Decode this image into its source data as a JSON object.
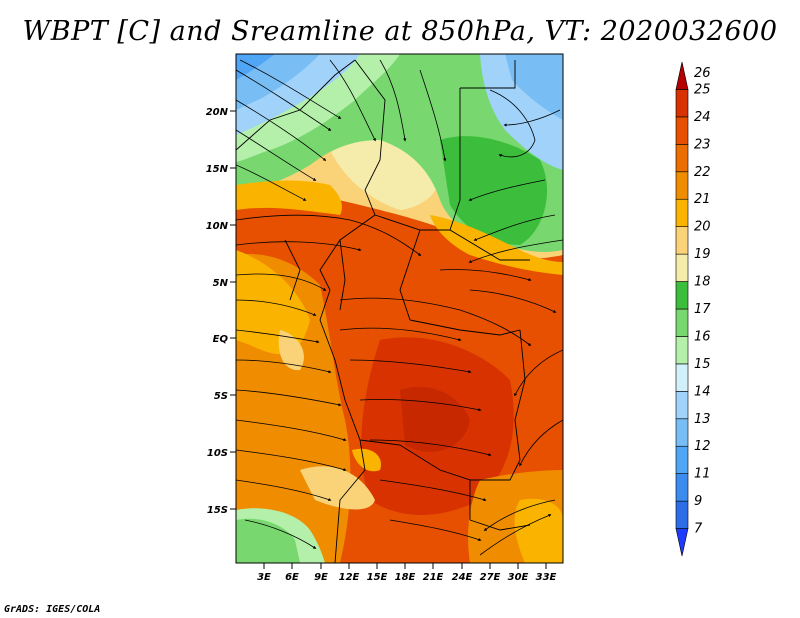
{
  "title": "WBPT [C] and Sreamline at 850hPa, VT: 2020032600",
  "credit": "GrADS: IGES/COLA",
  "axes": {
    "lat_labels": [
      "20N",
      "15N",
      "10N",
      "5N",
      "EQ",
      "5S",
      "10S",
      "15S"
    ],
    "lon_labels": [
      "3E",
      "6E",
      "9E",
      "12E",
      "15E",
      "18E",
      "21E",
      "24E",
      "27E",
      "30E",
      "33E"
    ]
  },
  "colorbar": {
    "labels": [
      "7",
      "9",
      "11",
      "12",
      "13",
      "14",
      "15",
      "16",
      "17",
      "18",
      "19",
      "20",
      "21",
      "22",
      "23",
      "24",
      "25",
      "26"
    ],
    "colors": [
      "#1e3cff",
      "#2d6ee6",
      "#3c8cf0",
      "#50a5f5",
      "#78bef5",
      "#a0d2fa",
      "#d2f0fa",
      "#b4f0aa",
      "#78d76e",
      "#3cbe3c",
      "#f5ebaa",
      "#fad278",
      "#fab400",
      "#f08c00",
      "#eb6e00",
      "#e65000",
      "#d73200",
      "#b40000"
    ]
  },
  "chart_data": {
    "type": "heatmap",
    "title": "WBPT [C] and Sreamline at 850hPa, VT: 2020032600",
    "variable": "WBPT [C]",
    "level": "850hPa",
    "valid_time": "2020032600",
    "lon_range": [
      0,
      34.5
    ],
    "lat_range": [
      -19.5,
      24.5
    ],
    "scale_levels": [
      7,
      9,
      11,
      12,
      13,
      14,
      15,
      16,
      17,
      18,
      19,
      20,
      21,
      22,
      23,
      24,
      25,
      26
    ],
    "regions": [
      {
        "area": "northwest corner",
        "wbpt_approx": 13
      },
      {
        "area": "north central",
        "wbpt_approx": 17
      },
      {
        "area": "northeast",
        "wbpt_approx": 16
      },
      {
        "area": "south of Sahara 12N-15N",
        "wbpt_approx": 19
      },
      {
        "area": "Gulf of Guinea coast",
        "wbpt_approx": 21
      },
      {
        "area": "Congo basin",
        "wbpt_approx": 24
      },
      {
        "area": "southwest corner",
        "wbpt_approx": 16
      },
      {
        "area": "southeast",
        "wbpt_approx": 22
      }
    ]
  }
}
